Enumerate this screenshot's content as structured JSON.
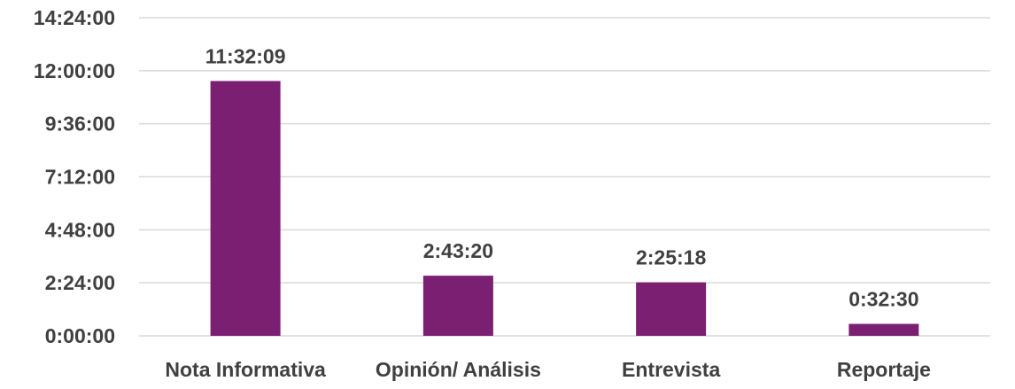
{
  "chart_data": {
    "type": "bar",
    "categories": [
      "Nota Informativa",
      "Opinión/ Análisis",
      "Entrevista",
      "Reportaje"
    ],
    "values_seconds": [
      41529,
      9800,
      8718,
      1950
    ],
    "value_labels": [
      "11:32:09",
      "2:43:20",
      "2:25:18",
      "0:32:30"
    ],
    "y_tick_labels": [
      "0:00:00",
      "2:24:00",
      "4:48:00",
      "7:12:00",
      "9:36:00",
      "12:00:00",
      "14:24:00"
    ],
    "y_tick_values_seconds": [
      0,
      8640,
      17280,
      25920,
      34560,
      43200,
      51840
    ],
    "ylim_seconds": [
      0,
      51840
    ],
    "ylabel": "",
    "xlabel": "",
    "title": "",
    "grid": true,
    "legend": "none",
    "bar_color": "#7B1F73"
  }
}
